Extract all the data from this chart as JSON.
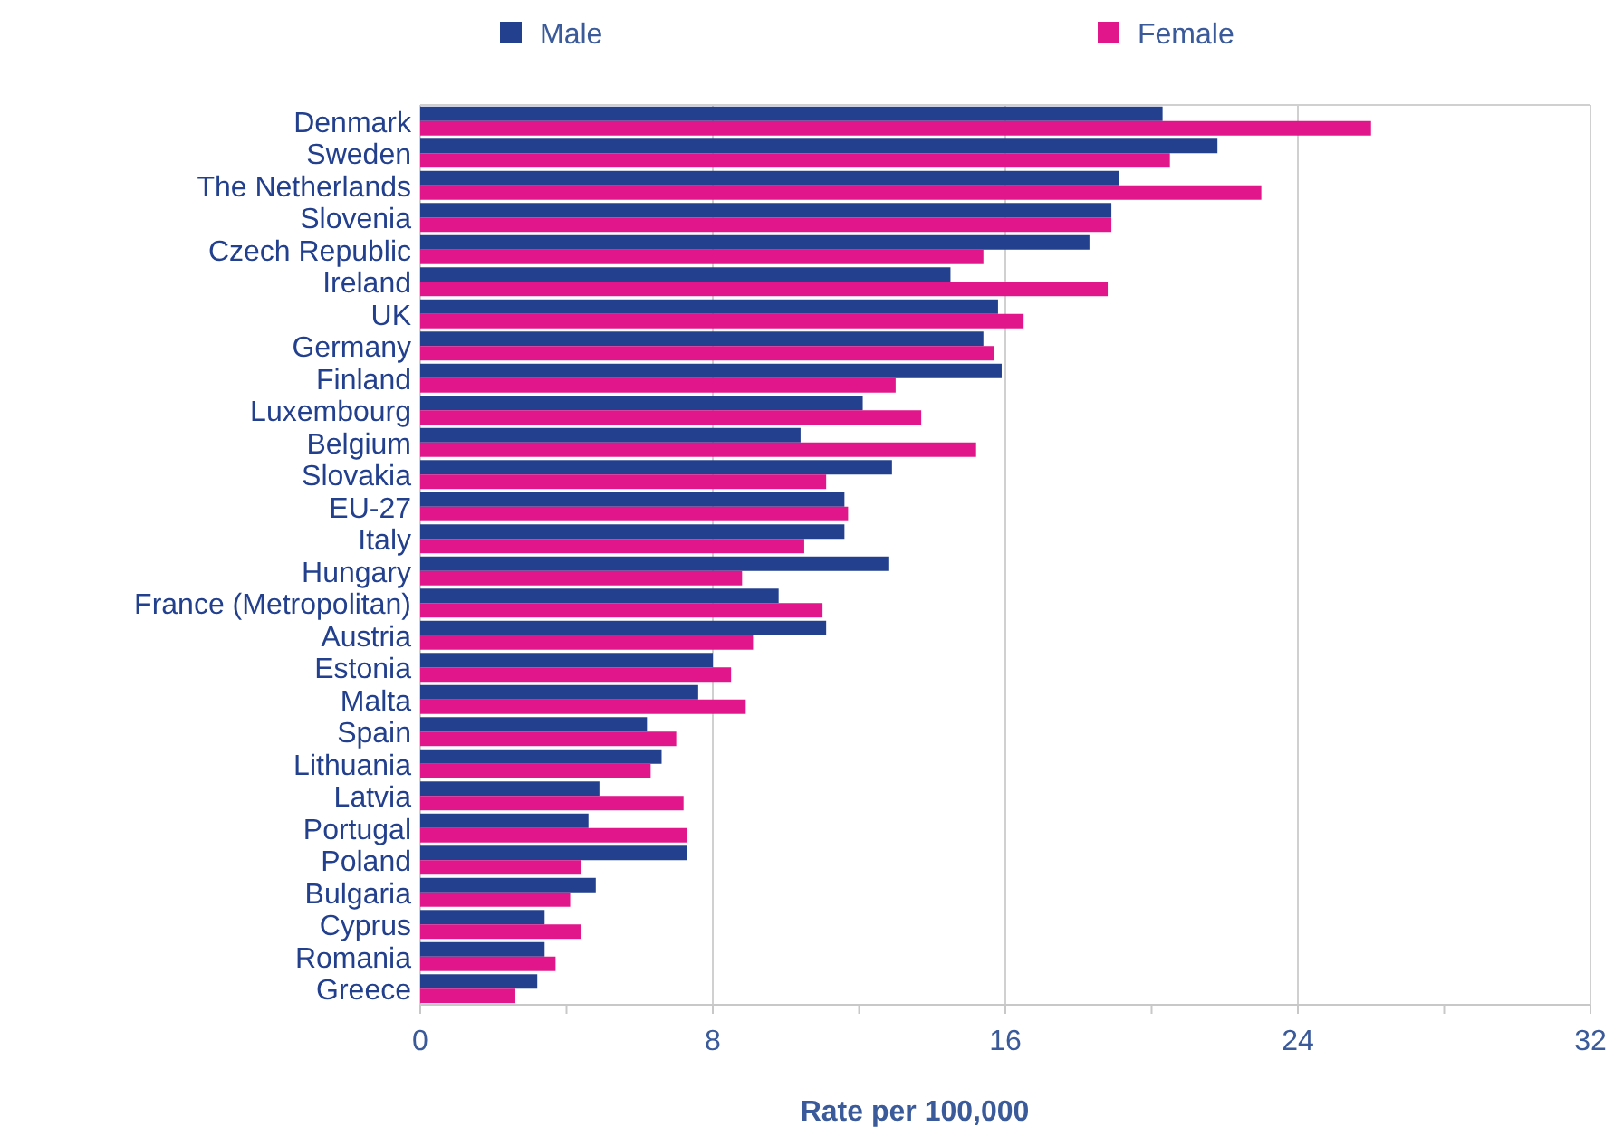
{
  "chart_data": {
    "type": "bar",
    "orientation": "horizontal",
    "xlabel": "Rate per 100,000",
    "categories": [
      "Denmark",
      "Sweden",
      "The Netherlands",
      "Slovenia",
      "Czech Republic",
      "Ireland",
      "UK",
      "Germany",
      "Finland",
      "Luxembourg",
      "Belgium",
      "Slovakia",
      "EU-27",
      "Italy",
      "Hungary",
      "France (Metropolitan)",
      "Austria",
      "Estonia",
      "Malta",
      "Spain",
      "Lithuania",
      "Latvia",
      "Portugal",
      "Poland",
      "Bulgaria",
      "Cyprus",
      "Romania",
      "Greece"
    ],
    "series": [
      {
        "name": "Male",
        "color": "#23408e",
        "values": [
          20.3,
          21.8,
          19.1,
          18.9,
          18.3,
          14.5,
          15.8,
          15.4,
          15.9,
          12.1,
          10.4,
          12.9,
          11.6,
          11.6,
          12.8,
          9.8,
          11.1,
          8.0,
          7.6,
          6.2,
          6.6,
          4.9,
          4.6,
          7.3,
          4.8,
          3.4,
          3.4,
          3.2
        ]
      },
      {
        "name": "Female",
        "color": "#e0168a",
        "values": [
          26.0,
          20.5,
          23.0,
          18.9,
          15.4,
          18.8,
          16.5,
          15.7,
          13.0,
          13.7,
          15.2,
          11.1,
          11.7,
          10.5,
          8.8,
          11.0,
          9.1,
          8.5,
          8.9,
          7.0,
          6.3,
          7.2,
          7.3,
          4.4,
          4.1,
          4.4,
          3.7,
          2.6
        ]
      }
    ],
    "xlim": [
      0,
      32
    ],
    "xticks": [
      0,
      8,
      16,
      24,
      32
    ],
    "grid": "x",
    "legend": "top"
  }
}
